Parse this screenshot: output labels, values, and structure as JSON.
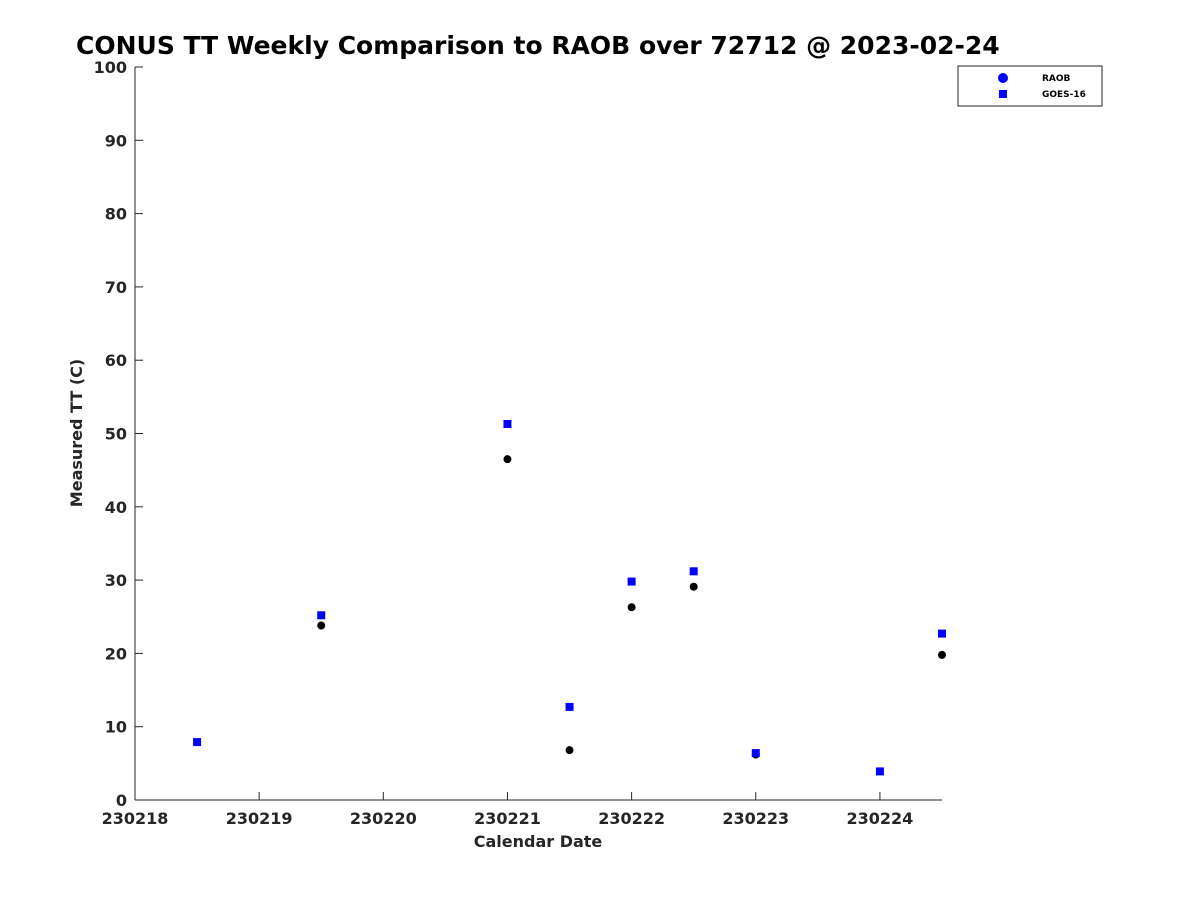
{
  "chart_data": {
    "type": "scatter",
    "title": "CONUS TT Weekly Comparison to RAOB over 72712 @ 2023-02-24",
    "xlabel": "Calendar Date",
    "ylabel": "Measured TT (C)",
    "xlim": [
      230218,
      230224.5
    ],
    "ylim": [
      0,
      100
    ],
    "xticks": [
      230218,
      230219,
      230220,
      230221,
      230222,
      230223,
      230224
    ],
    "xtick_labels": [
      "230218",
      "230219",
      "230220",
      "230221",
      "230222",
      "230223",
      "230224"
    ],
    "yticks": [
      0,
      10,
      20,
      30,
      40,
      50,
      60,
      70,
      80,
      90,
      100
    ],
    "ytick_labels": [
      "0",
      "10",
      "20",
      "30",
      "40",
      "50",
      "60",
      "70",
      "80",
      "90",
      "100"
    ],
    "grid": false,
    "legend_position": "top-right",
    "series": [
      {
        "name": "RAOB",
        "marker": "circle",
        "color": "#000000",
        "legend_color": "#0000ff",
        "x": [
          230219.5,
          230221,
          230221.5,
          230222,
          230222.5,
          230223,
          230224.5
        ],
        "y": [
          23.8,
          46.5,
          6.8,
          26.3,
          29.1,
          6.2,
          19.8
        ]
      },
      {
        "name": "GOES-16",
        "marker": "square",
        "color": "#0000ff",
        "x": [
          230218.5,
          230219.5,
          230221,
          230221.5,
          230222,
          230222.5,
          230223,
          230224,
          230224.5
        ],
        "y": [
          7.9,
          25.2,
          51.3,
          12.7,
          29.8,
          31.2,
          6.4,
          3.9,
          22.7
        ]
      }
    ]
  }
}
